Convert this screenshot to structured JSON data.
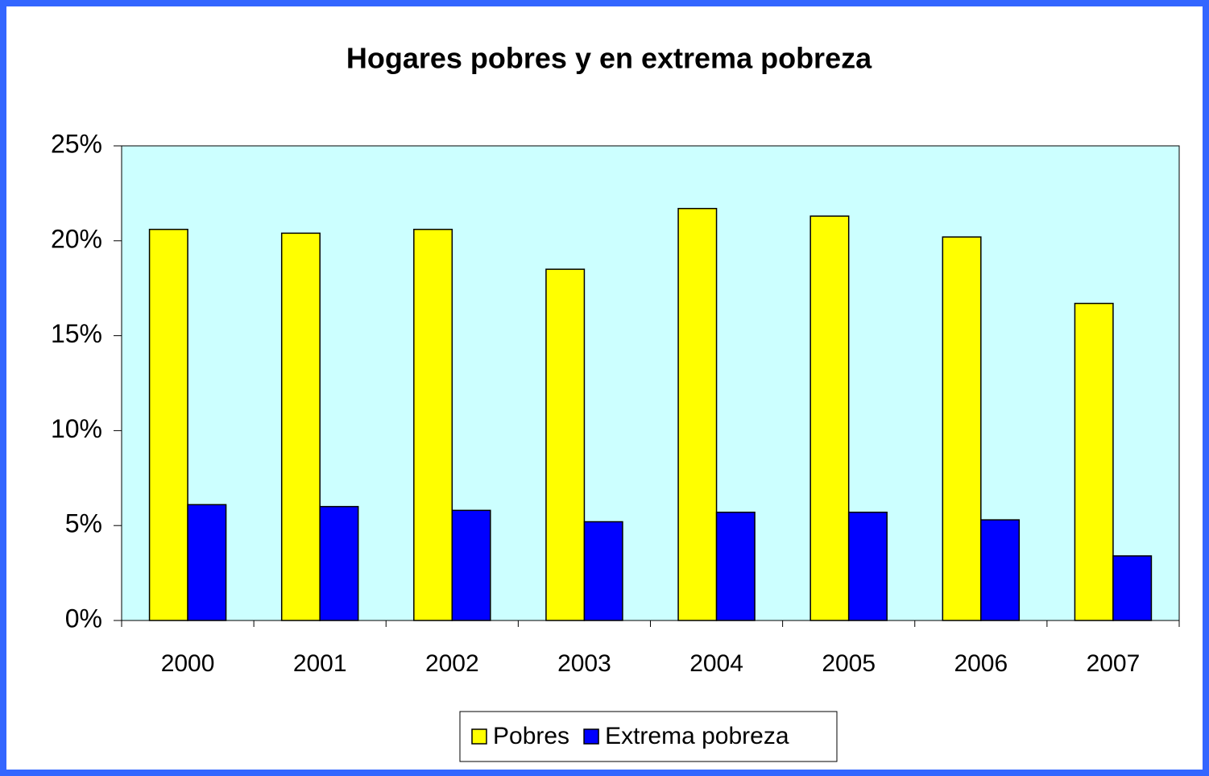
{
  "chart_data": {
    "type": "bar",
    "title": "Hogares pobres y en extrema pobreza",
    "categories": [
      "2000",
      "2001",
      "2002",
      "2003",
      "2004",
      "2005",
      "2006",
      "2007"
    ],
    "series": [
      {
        "name": "Pobres",
        "color": "#ffff00",
        "values": [
          20.6,
          20.4,
          20.6,
          18.5,
          21.7,
          21.3,
          20.2,
          16.7
        ]
      },
      {
        "name": "Extrema pobreza",
        "color": "#0000ff",
        "values": [
          6.1,
          6.0,
          5.8,
          5.2,
          5.7,
          5.7,
          5.3,
          3.4
        ]
      }
    ],
    "ylim": [
      0,
      25
    ],
    "yticks": [
      {
        "value": 0,
        "label": "0%"
      },
      {
        "value": 5,
        "label": "5%"
      },
      {
        "value": 10,
        "label": "10%"
      },
      {
        "value": 15,
        "label": "15%"
      },
      {
        "value": 20,
        "label": "20%"
      },
      {
        "value": 25,
        "label": "25%"
      }
    ],
    "grid": false,
    "legend": "bottom"
  }
}
